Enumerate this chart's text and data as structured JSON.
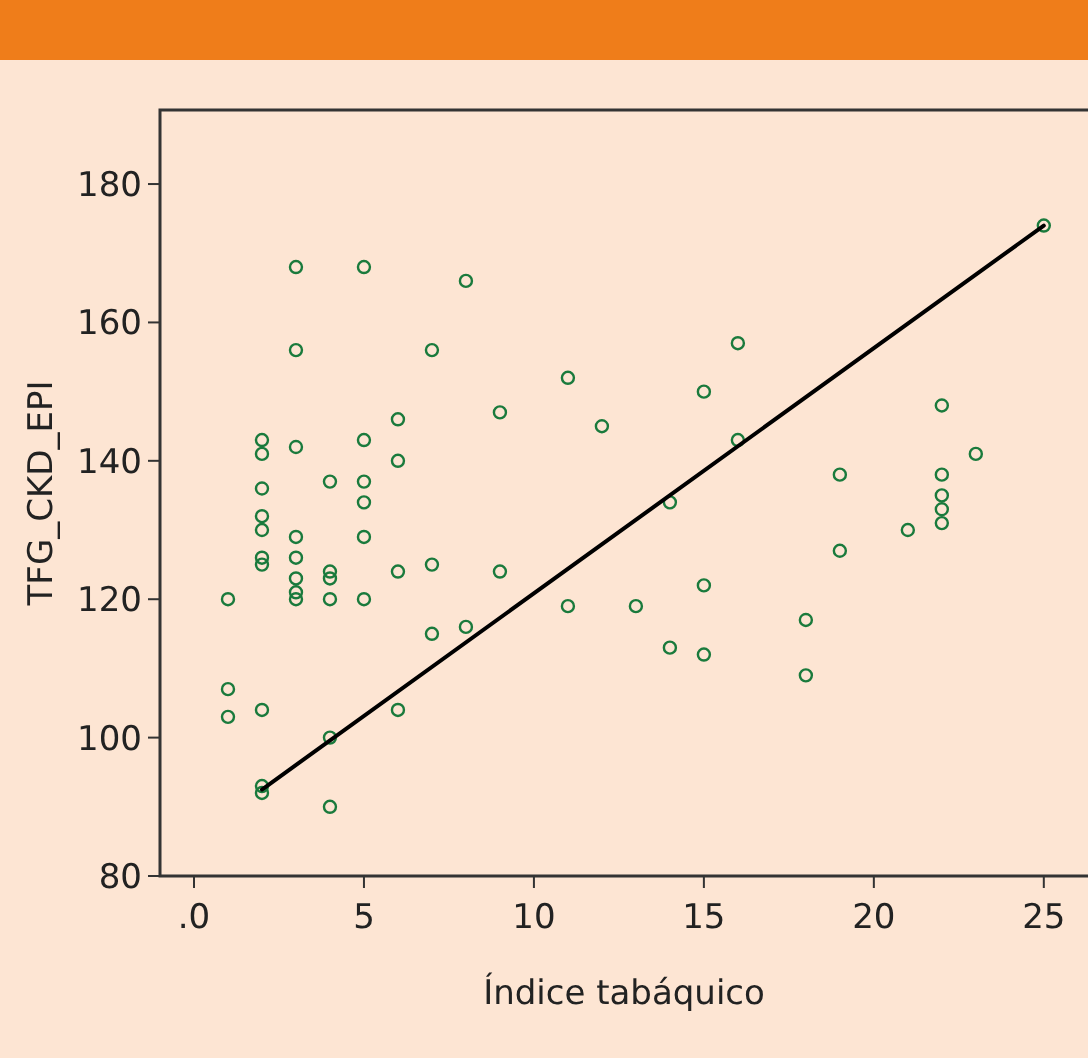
{
  "chart_data": {
    "type": "scatter",
    "xlabel": "Índice tabáquico",
    "ylabel": "TFG_CKD_EPI",
    "xlim": [
      -1,
      26.3
    ],
    "ylim": [
      80,
      190.7
    ],
    "xticks": [
      {
        "value": 0,
        "label": ".0"
      },
      5,
      10,
      15,
      20,
      25
    ],
    "yticks": [
      80,
      100,
      120,
      140,
      160,
      180
    ],
    "grid": false,
    "series": [
      {
        "color": "#1a7a3c",
        "marker": "circle",
        "x": [
          1,
          1,
          1,
          2,
          2,
          2,
          2,
          2,
          2,
          2,
          2,
          2,
          2,
          3,
          3,
          3,
          3,
          3,
          3,
          3,
          3,
          4,
          4,
          4,
          4,
          4,
          4,
          5,
          5,
          5,
          5,
          5,
          5,
          6,
          6,
          6,
          6,
          7,
          7,
          7,
          8,
          8,
          9,
          9,
          11,
          11,
          12,
          13,
          14,
          14,
          15,
          15,
          15,
          16,
          16,
          18,
          18,
          19,
          19,
          21,
          22,
          22,
          22,
          22,
          22,
          23,
          25
        ],
        "values": [
          120,
          107,
          103,
          143,
          141,
          136,
          132,
          130,
          126,
          125,
          104,
          93,
          92,
          168,
          156,
          142,
          129,
          126,
          123,
          121,
          120,
          137,
          124,
          123,
          120,
          100,
          90,
          168,
          143,
          137,
          134,
          129,
          120,
          146,
          140,
          124,
          104,
          156,
          125,
          115,
          166,
          116,
          147,
          124,
          152,
          119,
          145,
          119,
          134,
          113,
          150,
          122,
          112,
          157,
          143,
          117,
          109,
          138,
          127,
          130,
          148,
          138,
          135,
          133,
          131,
          141,
          174
        ]
      },
      {
        "type": "line",
        "color": "#000000",
        "marker": "none",
        "x": [
          2,
          25
        ],
        "values": [
          92.5,
          174
        ]
      }
    ]
  }
}
